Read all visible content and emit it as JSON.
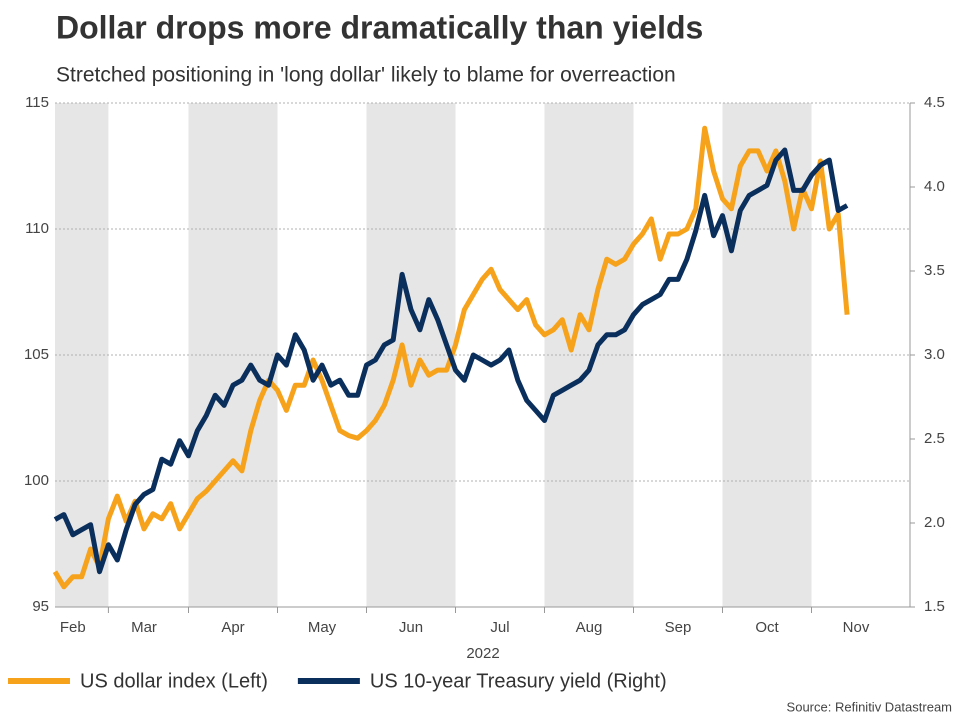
{
  "chart_data": {
    "type": "line",
    "title": "Dollar drops more dramatically than yields",
    "subtitle": "Stretched positioning in 'long dollar' likely to blame for overreaction",
    "xlabel": "2022",
    "source": "Source: Refinitiv Datastream",
    "legend": "bottom",
    "grid": true,
    "categories": [
      null,
      null,
      "Feb",
      null,
      null,
      null,
      null,
      null,
      null,
      null,
      "Mar",
      null,
      null,
      null,
      null,
      null,
      null,
      null,
      null,
      null,
      "Apr",
      null,
      null,
      null,
      null,
      null,
      null,
      null,
      null,
      null,
      "May",
      null,
      null,
      null,
      null,
      null,
      null,
      null,
      null,
      null,
      "Jun",
      null,
      null,
      null,
      null,
      null,
      null,
      null,
      null,
      null,
      "Jul",
      null,
      null,
      null,
      null,
      null,
      null,
      null,
      null,
      null,
      "Aug",
      null,
      null,
      null,
      null,
      null,
      null,
      null,
      null,
      null,
      "Sep",
      null,
      null,
      null,
      null,
      null,
      null,
      null,
      null,
      null,
      "Oct",
      null,
      null,
      null,
      null,
      null,
      null,
      null,
      null,
      null,
      "Nov"
    ],
    "ylim": [
      95,
      115
    ],
    "yticks": [
      95,
      100,
      105,
      110,
      115
    ],
    "y2lim": [
      1.5,
      4.5
    ],
    "y2ticks": [
      1.5,
      {
        "value": 2,
        "label": "2.0"
      },
      2.5,
      {
        "value": 3,
        "label": "3.0"
      },
      3.5,
      {
        "value": 4,
        "label": "4.0"
      },
      4.5
    ],
    "series": [
      {
        "name": "US dollar index (Left)",
        "color": "#f7a21b",
        "values": [
          96.4,
          95.8,
          96.2,
          96.2,
          97.3,
          96.6,
          98.5,
          99.4,
          98.4,
          99.2,
          98.1,
          98.7,
          98.5,
          99.1,
          98.1,
          98.7,
          99.3,
          99.6,
          100.0,
          100.4,
          100.8,
          100.4,
          102.0,
          103.2,
          104.0,
          103.6,
          102.8,
          103.8,
          103.8,
          104.8,
          104.0,
          103.0,
          102.0,
          101.8,
          101.7,
          102.0,
          102.4,
          103.0,
          104.0,
          105.4,
          103.8,
          104.8,
          104.2,
          104.4,
          104.4,
          105.4,
          106.8,
          107.4,
          108.0,
          108.4,
          107.6,
          107.2,
          106.8,
          107.2,
          106.2,
          105.8,
          106.0,
          106.4,
          105.2,
          106.6,
          106.0,
          107.6,
          108.8,
          108.6,
          108.8,
          109.4,
          109.8,
          110.4,
          108.8,
          109.8,
          109.8,
          110.0,
          110.8,
          114.0,
          112.3,
          111.2,
          110.8,
          112.5,
          113.1,
          113.1,
          112.3,
          113.1,
          111.9,
          110.0,
          111.6,
          110.8,
          112.7,
          110.0,
          110.6,
          106.6,
          null
        ]
      },
      {
        "name": "US 10-year Treasury yield (Right)",
        "color": "#0b2f5c",
        "axis": "y2",
        "values": [
          2.02,
          2.05,
          1.93,
          1.96,
          1.99,
          1.71,
          1.87,
          1.78,
          1.96,
          2.11,
          2.17,
          2.2,
          2.38,
          2.35,
          2.49,
          2.4,
          2.55,
          2.64,
          2.76,
          2.7,
          2.82,
          2.85,
          2.94,
          2.85,
          2.82,
          3.0,
          2.94,
          3.12,
          3.03,
          2.85,
          2.94,
          2.82,
          2.85,
          2.76,
          2.76,
          2.94,
          2.97,
          3.06,
          3.09,
          3.48,
          3.27,
          3.15,
          3.33,
          3.21,
          3.06,
          2.91,
          2.85,
          3.0,
          2.97,
          2.94,
          2.97,
          3.03,
          2.85,
          2.73,
          2.67,
          2.61,
          2.76,
          2.79,
          2.82,
          2.85,
          2.91,
          3.06,
          3.12,
          3.12,
          3.15,
          3.24,
          3.3,
          3.33,
          3.36,
          3.45,
          3.45,
          3.57,
          3.74,
          3.95,
          3.71,
          3.83,
          3.62,
          3.86,
          3.95,
          3.98,
          4.01,
          4.16,
          4.22,
          3.98,
          3.98,
          4.07,
          4.13,
          4.16,
          3.86,
          3.89,
          null
        ]
      }
    ]
  }
}
